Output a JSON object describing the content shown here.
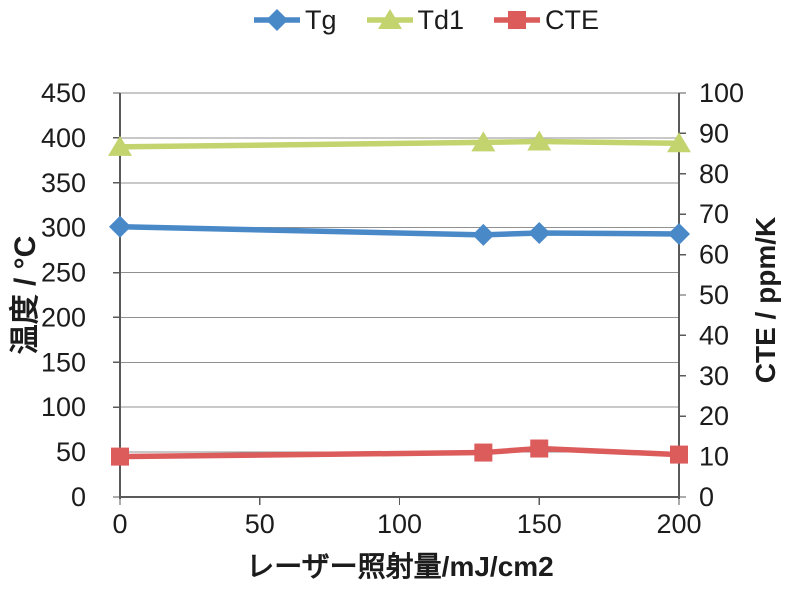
{
  "chart_data": {
    "type": "line",
    "title": "",
    "x_label": "レーザー照射量/mJ/cm2",
    "y_left_label": "温度 / °C",
    "y_right_label": "CTE / ppm/K",
    "x": [
      0,
      130,
      150,
      200
    ],
    "x_ticks": [
      0,
      50,
      100,
      150,
      200
    ],
    "x_range": [
      0,
      200
    ],
    "y_left_ticks": [
      450,
      400,
      350,
      300,
      250,
      200,
      150,
      100,
      50,
      0
    ],
    "y_left_range": [
      0,
      450
    ],
    "y_right_ticks": [
      100,
      90,
      80,
      70,
      60,
      50,
      40,
      30,
      20,
      10,
      0
    ],
    "y_right_range": [
      0,
      100
    ],
    "grid": "horizontal",
    "legend_position": "top",
    "series": [
      {
        "name": "Tg",
        "axis": "left",
        "marker": "diamond",
        "color": "#4a89c8",
        "values": [
          301,
          292,
          294,
          293
        ]
      },
      {
        "name": "Td1",
        "axis": "left",
        "marker": "triangle",
        "color": "#c3d46e",
        "values": [
          390,
          395,
          396,
          394
        ]
      },
      {
        "name": "CTE",
        "axis": "right",
        "marker": "square",
        "color": "#dc5b5b",
        "values": [
          10,
          11,
          12,
          10.5
        ]
      }
    ],
    "colors": {
      "gridline": "#909090",
      "axis_line": "#5a5a5a",
      "tick_text": "#1c1c1c",
      "background": "#ffffff"
    }
  }
}
